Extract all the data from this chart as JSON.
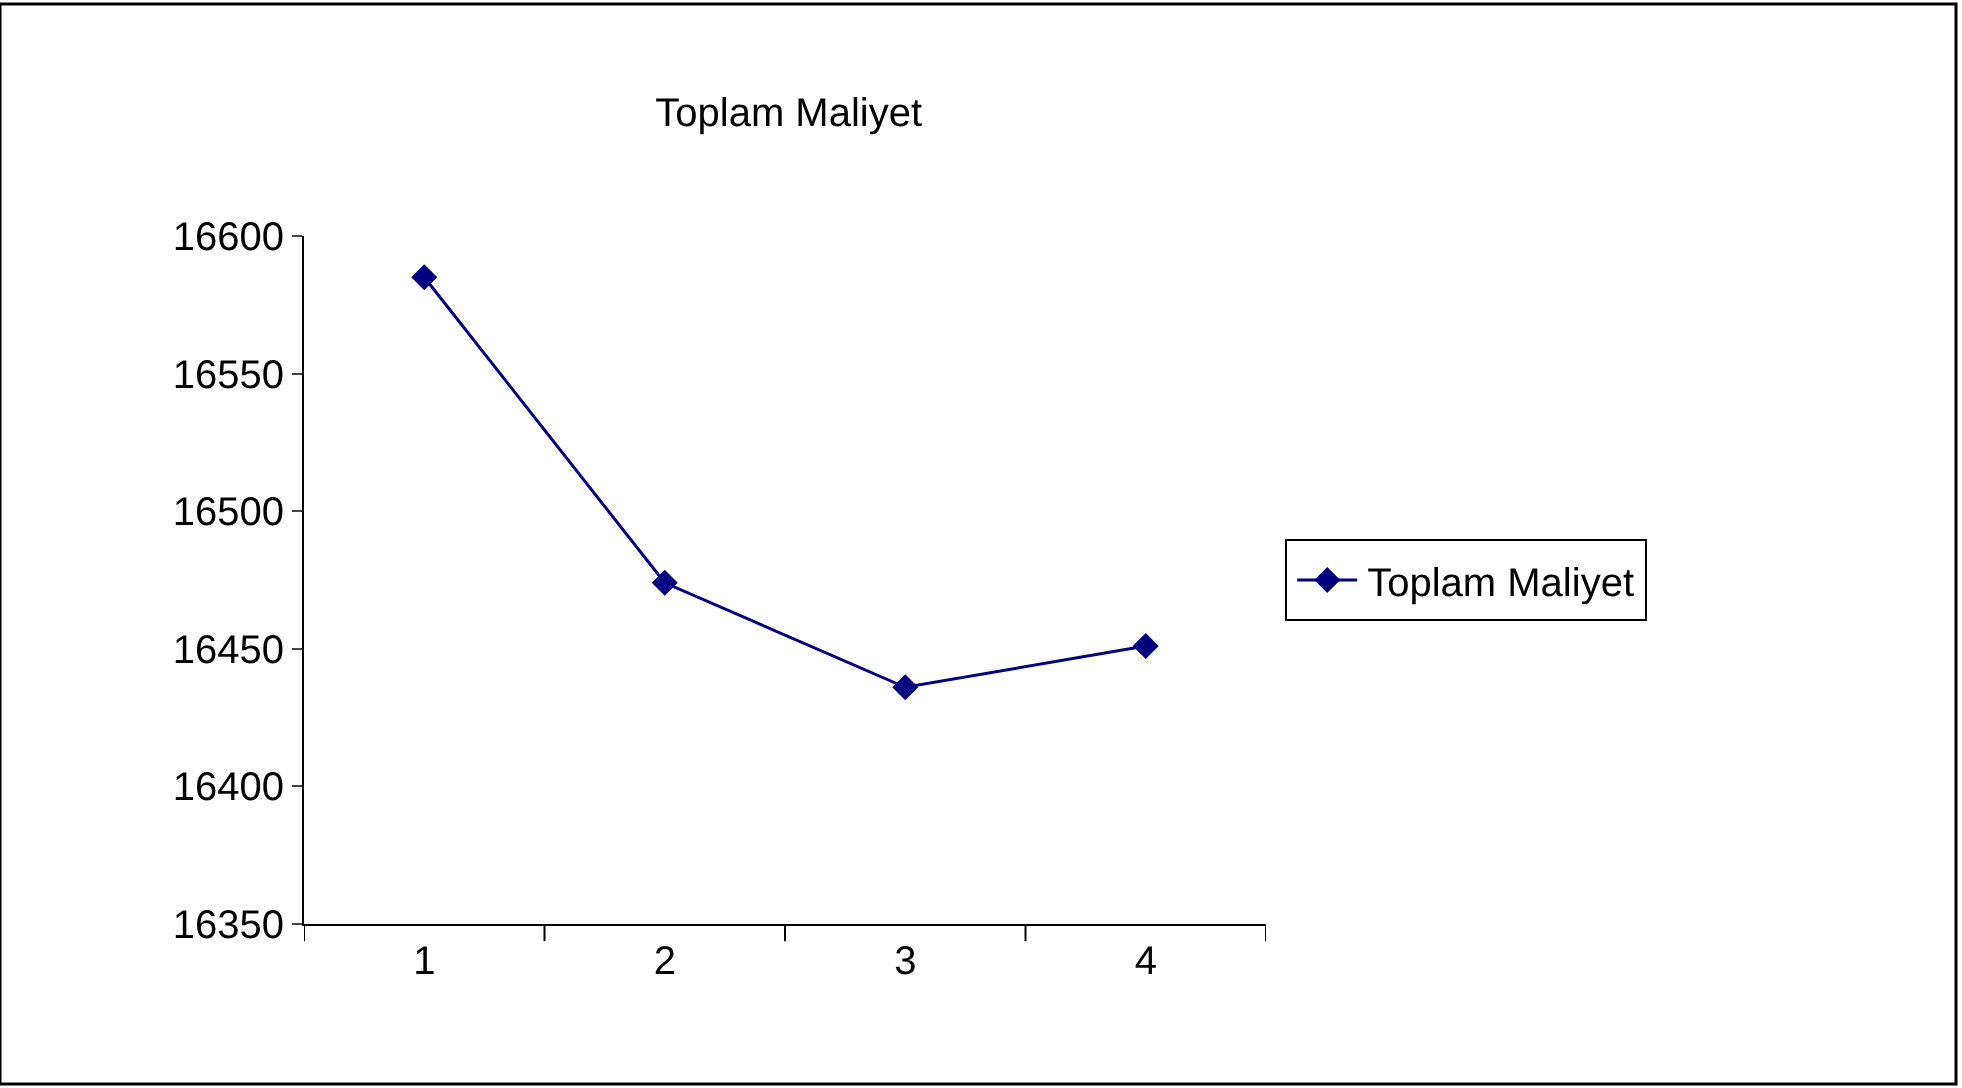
{
  "chart_data": {
    "type": "line",
    "title": "Toplam Maliyet",
    "categories": [
      "1",
      "2",
      "3",
      "4"
    ],
    "series": [
      {
        "name": "Toplam Maliyet",
        "color": "#000080",
        "values": [
          16585,
          16474,
          16436,
          16451
        ]
      }
    ],
    "ylim": [
      16350,
      16600
    ],
    "yticks": [
      16350,
      16400,
      16450,
      16500,
      16550,
      16600
    ],
    "marker": "diamond",
    "line_style": "solid",
    "legend": "right"
  }
}
